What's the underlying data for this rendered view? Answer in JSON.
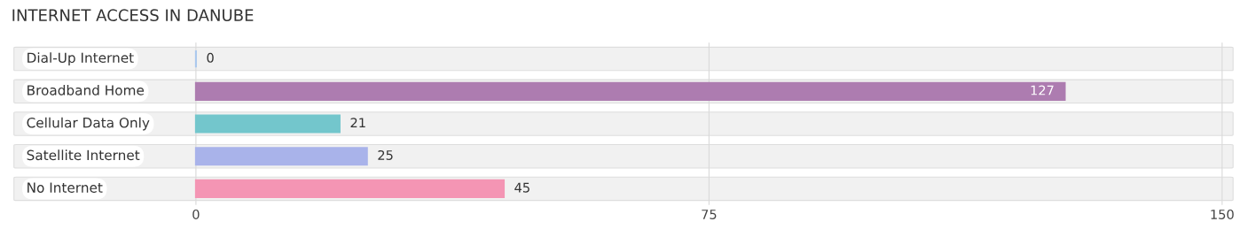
{
  "chart_data": {
    "type": "bar",
    "orientation": "horizontal",
    "title": "INTERNET ACCESS IN DANUBE",
    "categories": [
      "Dial-Up Internet",
      "Broadband Home",
      "Cellular Data Only",
      "Satellite Internet",
      "No Internet"
    ],
    "values": [
      0,
      127,
      21,
      25,
      45
    ],
    "colors": [
      "#aac8ee",
      "#ad7cb0",
      "#73c6cc",
      "#a9b3ea",
      "#f495b4"
    ],
    "xlim": [
      -27,
      152
    ],
    "xticks": [
      0,
      75,
      150
    ],
    "grid": "x",
    "data_labels": true
  }
}
